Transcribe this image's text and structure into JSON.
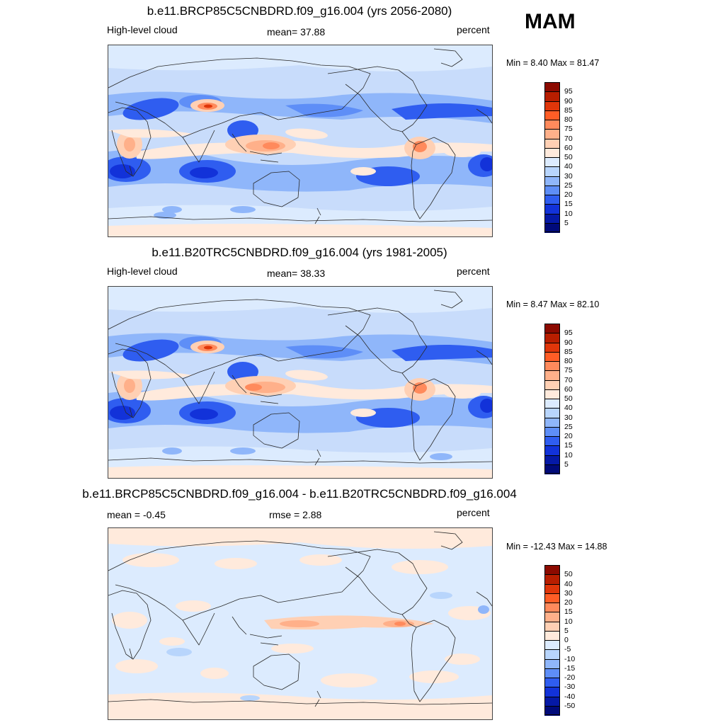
{
  "season": "MAM",
  "panels": [
    {
      "title": "b.e11.BRCP85C5CNBDRD.f09_g16.004 (yrs 2056-2080)",
      "left_label": "High-level cloud",
      "center_label": "mean=  37.88",
      "units": "percent",
      "minmax": "Min =   8.40 Max =  81.47",
      "colorbar": {
        "labels": [
          "95",
          "90",
          "85",
          "80",
          "75",
          "70",
          "60",
          "50",
          "40",
          "30",
          "25",
          "20",
          "15",
          "10",
          "5"
        ],
        "colors": [
          "#8c0a00",
          "#b81e00",
          "#e0360a",
          "#ff5d26",
          "#ff8a5c",
          "#ffb08a",
          "#ffd0b4",
          "#ffeadc",
          "#dcebfe",
          "#b8d5fc",
          "#8fb6fa",
          "#5e8ef7",
          "#2f5df0",
          "#1232d9",
          "#0519a6",
          "#000a7a"
        ]
      },
      "field": "high_cloud_future"
    },
    {
      "title": "b.e11.B20TRC5CNBDRD.f09_g16.004 (yrs 1981-2005)",
      "left_label": "High-level cloud",
      "center_label": "mean=  38.33",
      "units": "percent",
      "minmax": "Min =   8.47 Max =  82.10",
      "colorbar": {
        "labels": [
          "95",
          "90",
          "85",
          "80",
          "75",
          "70",
          "60",
          "50",
          "40",
          "30",
          "25",
          "20",
          "15",
          "10",
          "5"
        ],
        "colors": [
          "#8c0a00",
          "#b81e00",
          "#e0360a",
          "#ff5d26",
          "#ff8a5c",
          "#ffb08a",
          "#ffd0b4",
          "#ffeadc",
          "#dcebfe",
          "#b8d5fc",
          "#8fb6fa",
          "#5e8ef7",
          "#2f5df0",
          "#1232d9",
          "#0519a6",
          "#000a7a"
        ]
      },
      "field": "high_cloud_hist"
    },
    {
      "title": "b.e11.BRCP85C5CNBDRD.f09_g16.004 - b.e11.B20TRC5CNBDRD.f09_g16.004",
      "left_label": "mean =  -0.45",
      "center_label": "rmse =   2.88",
      "units": "percent",
      "minmax": "Min = -12.43 Max =  14.88",
      "colorbar": {
        "labels": [
          "50",
          "40",
          "30",
          "20",
          "15",
          "10",
          "5",
          "0",
          "-5",
          "-10",
          "-15",
          "-20",
          "-30",
          "-40",
          "-50"
        ],
        "colors": [
          "#8c0a00",
          "#b81e00",
          "#e0360a",
          "#ff5d26",
          "#ff8a5c",
          "#ffb08a",
          "#ffd0b4",
          "#ffeadc",
          "#dcebfe",
          "#b8d5fc",
          "#8fb6fa",
          "#5e8ef7",
          "#2f5df0",
          "#1232d9",
          "#0519a6",
          "#000a7a"
        ]
      },
      "field": "difference"
    }
  ]
}
